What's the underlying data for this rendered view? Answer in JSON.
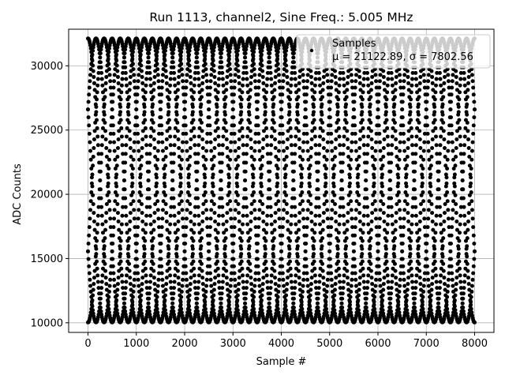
{
  "chart_data": {
    "type": "scatter",
    "title": "Run 1113, channel2, Sine Freq.: 5.005 MHz",
    "xlabel": "Sample #",
    "ylabel": "ADC Counts",
    "xlim": [
      -400,
      8400
    ],
    "ylim": [
      9250,
      32850
    ],
    "xticks": [
      0,
      1000,
      2000,
      3000,
      4000,
      5000,
      6000,
      7000,
      8000
    ],
    "yticks": [
      10000,
      15000,
      20000,
      25000,
      30000
    ],
    "grid": true,
    "legend": {
      "placement": "top-right",
      "title": "Samples",
      "entry": "μ = 21122.89, σ = 7802.56"
    },
    "series": [
      {
        "name": "Samples",
        "color": "#000000",
        "marker": "dot",
        "mean": 21122.89,
        "std": 7802.56,
        "generator": {
          "x_range": [
            0,
            8000
          ],
          "amplitude": 11050,
          "offset": 21080,
          "cycles_per_1000_samples": 1.0,
          "phases_deg": [
            0,
            60,
            120,
            180,
            240,
            300
          ]
        }
      }
    ]
  }
}
